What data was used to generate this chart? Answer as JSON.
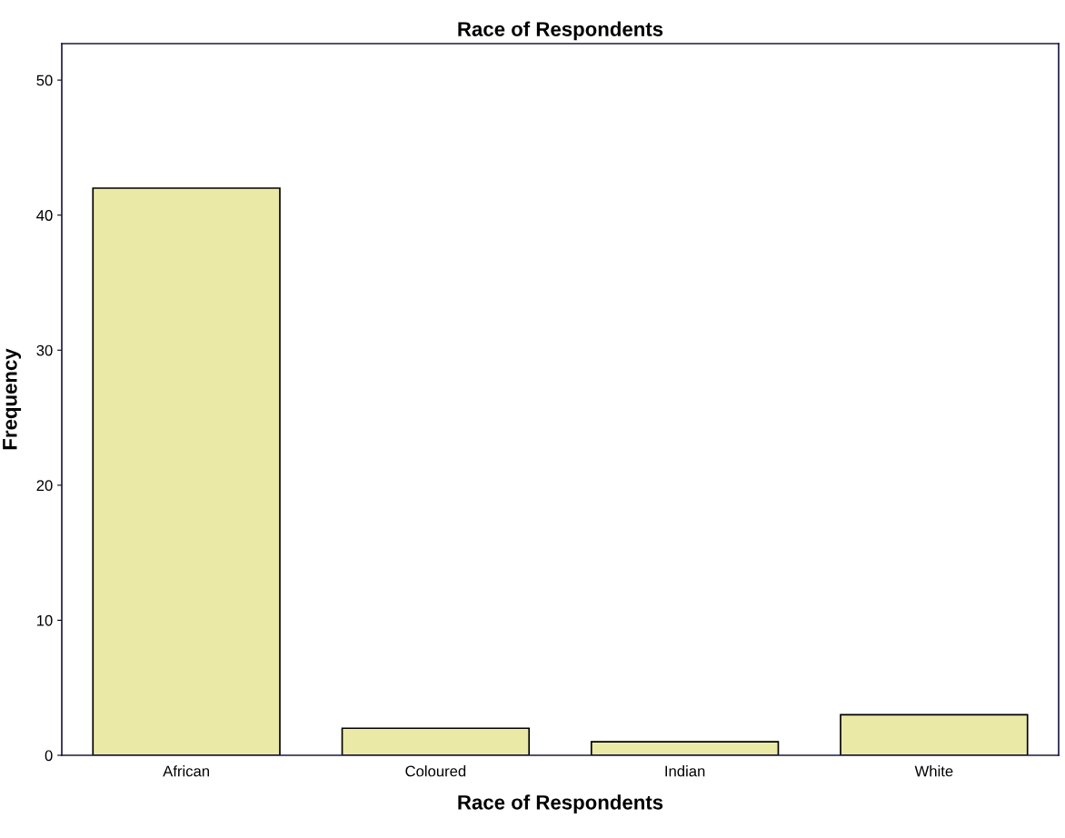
{
  "chart_data": {
    "type": "bar",
    "title": "Race of Respondents",
    "xlabel": "Race of Respondents",
    "ylabel": "Frequency",
    "categories": [
      "African",
      "Coloured",
      "Indian",
      "White"
    ],
    "values": [
      42,
      2,
      1,
      3
    ],
    "color": "#eaeaa6",
    "ylim": [
      0,
      52.7
    ],
    "yticks": [
      0,
      10,
      20,
      30,
      40,
      50
    ],
    "grid": false,
    "legend": false
  }
}
